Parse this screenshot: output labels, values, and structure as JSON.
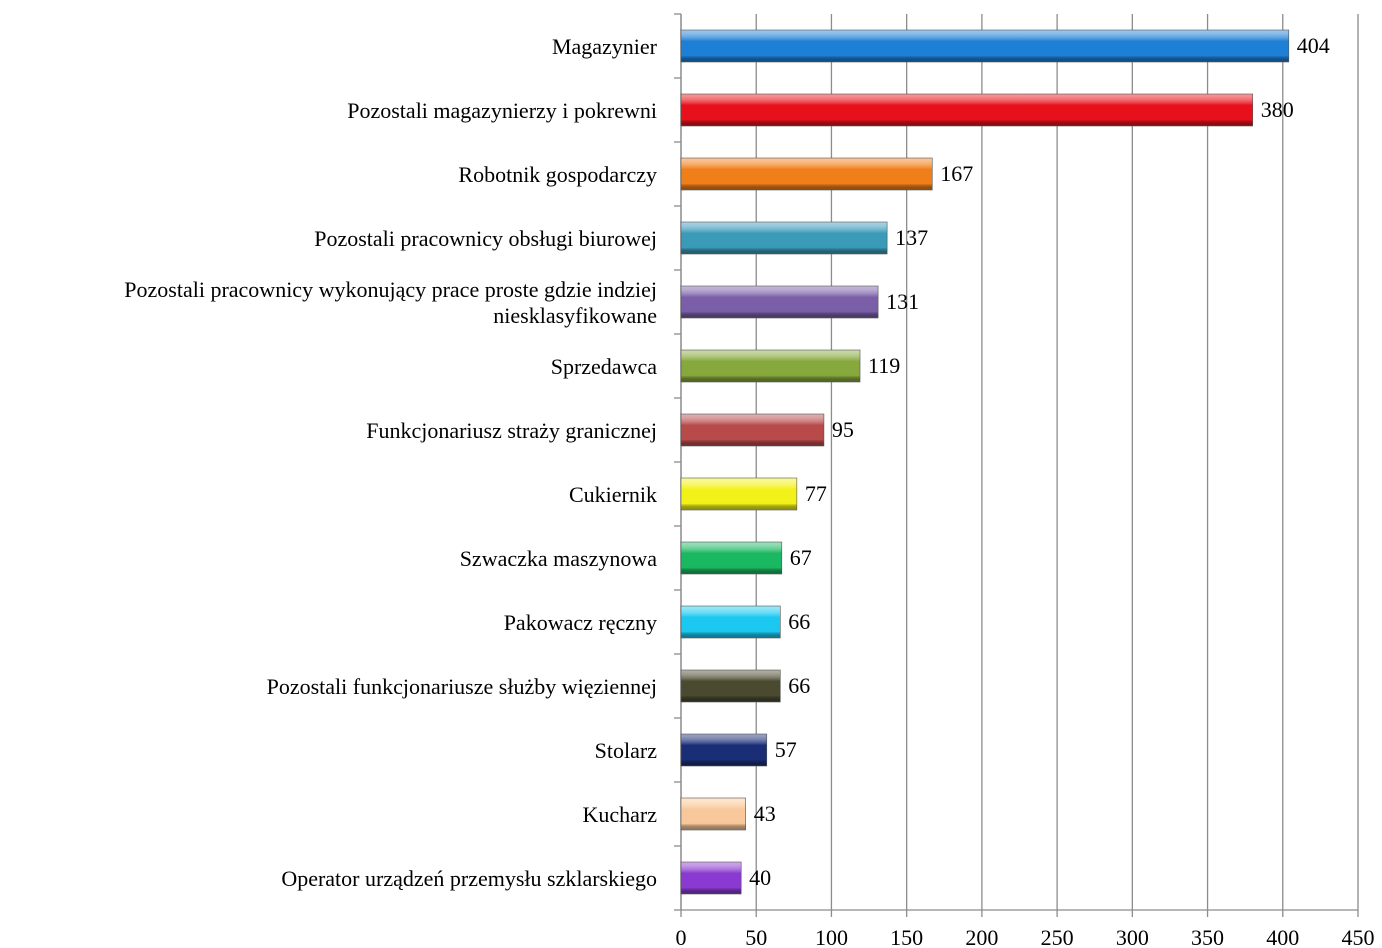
{
  "chart_data": {
    "type": "bar",
    "orientation": "horizontal",
    "categories": [
      "Magazynier",
      "Pozostali magazynierzy i pokrewni",
      "Robotnik gospodarczy",
      "Pozostali pracownicy obsługi biurowej",
      "Pozostali pracownicy wykonujący prace proste gdzie indziej niesklasyfikowane",
      "Sprzedawca",
      "Funkcjonariusz straży granicznej",
      "Cukiernik",
      "Szwaczka maszynowa",
      "Pakowacz ręczny",
      "Pozostali funkcjonariusze służby więziennej",
      "Stolarz",
      "Kucharz",
      "Operator urządzeń przemysłu szklarskiego"
    ],
    "values": [
      404,
      380,
      167,
      137,
      131,
      119,
      95,
      77,
      67,
      66,
      66,
      57,
      43,
      40
    ],
    "colors": [
      "#1e7fd6",
      "#e8101a",
      "#f07f1a",
      "#3a9ab8",
      "#7a5ea8",
      "#86a83c",
      "#b84a4a",
      "#f2f21a",
      "#1ab860",
      "#1ac8f0",
      "#4a4a30",
      "#1a2e78",
      "#f8c89a",
      "#8a3ad0"
    ],
    "xlim": [
      0,
      450
    ],
    "xticks": [
      0,
      50,
      100,
      150,
      200,
      250,
      300,
      350,
      400,
      450
    ],
    "grid": true
  }
}
